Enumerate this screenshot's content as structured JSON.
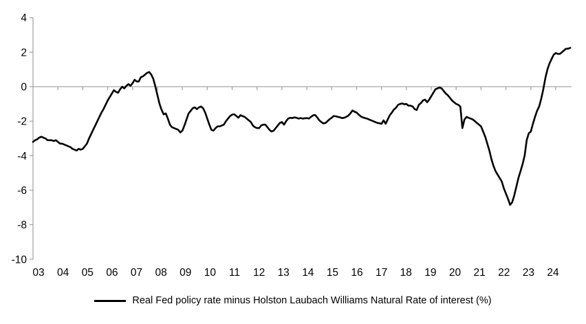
{
  "chart_data": {
    "type": "line",
    "title": "",
    "frequency": "monthly",
    "x_start": "2003-01",
    "x_end": "2024-08",
    "ylim": [
      -10,
      4
    ],
    "grid": "zero-line-only",
    "legend_position": "bottom-center",
    "axis_color": "#a6a6a6",
    "text_color": "#000000",
    "line_width": 2.6,
    "y_tick_labels": [
      "4",
      "2",
      "0",
      "-2",
      "-4",
      "-6",
      "-8",
      "-10"
    ],
    "x_tick_labels": [
      "03",
      "04",
      "05",
      "06",
      "07",
      "08",
      "09",
      "10",
      "11",
      "12",
      "13",
      "14",
      "15",
      "16",
      "17",
      "18",
      "19",
      "20",
      "21",
      "22",
      "23",
      "24"
    ],
    "series": [
      {
        "name": "Real Fed policy rate minus Holston Laubach Williams Natural Rate of interest (%)",
        "color": "#000000",
        "values": [
          -3.2,
          -3.1,
          -3.05,
          -2.95,
          -2.9,
          -2.95,
          -3.0,
          -3.1,
          -3.1,
          -3.1,
          -3.15,
          -3.1,
          -3.2,
          -3.3,
          -3.3,
          -3.35,
          -3.4,
          -3.45,
          -3.5,
          -3.6,
          -3.65,
          -3.7,
          -3.6,
          -3.65,
          -3.6,
          -3.45,
          -3.3,
          -3.0,
          -2.75,
          -2.5,
          -2.25,
          -2.0,
          -1.75,
          -1.5,
          -1.3,
          -1.05,
          -0.8,
          -0.6,
          -0.4,
          -0.2,
          -0.3,
          -0.35,
          -0.15,
          0.0,
          -0.1,
          0.05,
          0.15,
          0.05,
          0.2,
          0.4,
          0.3,
          0.3,
          0.55,
          0.6,
          0.7,
          0.8,
          0.85,
          0.7,
          0.45,
          0.0,
          -0.5,
          -1.0,
          -1.35,
          -1.6,
          -1.55,
          -1.85,
          -2.2,
          -2.35,
          -2.4,
          -2.45,
          -2.5,
          -2.65,
          -2.55,
          -2.25,
          -1.9,
          -1.55,
          -1.4,
          -1.25,
          -1.2,
          -1.3,
          -1.2,
          -1.15,
          -1.25,
          -1.5,
          -1.85,
          -2.2,
          -2.5,
          -2.55,
          -2.4,
          -2.3,
          -2.3,
          -2.25,
          -2.2,
          -2.0,
          -1.85,
          -1.7,
          -1.62,
          -1.6,
          -1.7,
          -1.8,
          -1.65,
          -1.7,
          -1.75,
          -1.85,
          -1.95,
          -2.05,
          -2.25,
          -2.35,
          -2.4,
          -2.4,
          -2.25,
          -2.2,
          -2.2,
          -2.35,
          -2.5,
          -2.6,
          -2.55,
          -2.4,
          -2.25,
          -2.1,
          -2.05,
          -2.2,
          -2.0,
          -1.85,
          -1.8,
          -1.82,
          -1.78,
          -1.8,
          -1.85,
          -1.82,
          -1.85,
          -1.83,
          -1.82,
          -1.85,
          -1.75,
          -1.66,
          -1.64,
          -1.78,
          -1.95,
          -2.05,
          -2.13,
          -2.1,
          -2.0,
          -1.88,
          -1.8,
          -1.7,
          -1.72,
          -1.75,
          -1.78,
          -1.82,
          -1.8,
          -1.75,
          -1.68,
          -1.55,
          -1.38,
          -1.45,
          -1.5,
          -1.62,
          -1.72,
          -1.78,
          -1.82,
          -1.85,
          -1.9,
          -1.95,
          -2.0,
          -2.05,
          -2.1,
          -2.12,
          -2.15,
          -1.95,
          -2.15,
          -1.9,
          -1.65,
          -1.5,
          -1.32,
          -1.22,
          -1.05,
          -1.0,
          -0.97,
          -1.02,
          -1.0,
          -1.1,
          -1.1,
          -1.15,
          -1.3,
          -1.35,
          -1.05,
          -0.95,
          -0.8,
          -0.75,
          -0.9,
          -0.75,
          -0.55,
          -0.35,
          -0.15,
          -0.1,
          -0.05,
          -0.1,
          -0.25,
          -0.4,
          -0.5,
          -0.65,
          -0.8,
          -0.9,
          -1.0,
          -1.05,
          -1.15,
          -2.4,
          -1.9,
          -1.75,
          -1.8,
          -1.85,
          -1.9,
          -2.0,
          -2.1,
          -2.2,
          -2.3,
          -2.6,
          -2.9,
          -3.3,
          -3.7,
          -4.2,
          -4.6,
          -4.9,
          -5.1,
          -5.3,
          -5.5,
          -5.9,
          -6.2,
          -6.5,
          -6.85,
          -6.7,
          -6.3,
          -5.8,
          -5.3,
          -4.9,
          -4.5,
          -4.0,
          -3.1,
          -2.7,
          -2.6,
          -2.15,
          -1.75,
          -1.4,
          -1.15,
          -0.7,
          -0.15,
          0.5,
          1.0,
          1.35,
          1.6,
          1.85,
          1.95,
          1.9,
          1.9,
          2.0,
          2.1,
          2.2,
          2.2,
          2.25
        ]
      }
    ]
  }
}
